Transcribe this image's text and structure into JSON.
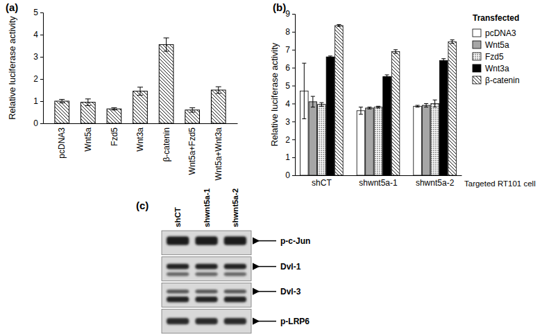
{
  "chart_data": [
    {
      "type": "bar",
      "title": "(a)",
      "ylabel": "Relative luciferase activity",
      "categories": [
        "pcDNA3",
        "Wnt5a",
        "Fzd5",
        "Wnt3a",
        "β-catenin",
        "Wnt5a+Fzd5",
        "Wnt5a+Wnt3a"
      ],
      "values": [
        1.0,
        0.95,
        0.65,
        1.45,
        3.55,
        0.6,
        1.5
      ],
      "errors": [
        0.08,
        0.15,
        0.05,
        0.18,
        0.3,
        0.1,
        0.15
      ],
      "line_style": "hatched",
      "ylim": [
        0,
        5
      ],
      "yticks": [
        0,
        1,
        2,
        3,
        4,
        5
      ]
    },
    {
      "type": "bar",
      "title": "(b)",
      "ylabel": "Relative luciferase activity",
      "xlabel": "Targeted RT101 cell",
      "legend_title": "Transfected",
      "legend": "right",
      "categories": [
        "shCT",
        "shwnt5a-1",
        "shwnt5a-2"
      ],
      "series": [
        {
          "name": "pcDNA3",
          "color": "#ffffff",
          "values": [
            4.7,
            3.6,
            3.85
          ],
          "errors": [
            1.55,
            0.2,
            0.05
          ]
        },
        {
          "name": "Wnt5a",
          "color": "#a6a6a6",
          "values": [
            4.1,
            3.75,
            3.9
          ],
          "errors": [
            0.3,
            0.05,
            0.1
          ]
        },
        {
          "name": "Fzd5",
          "color": "#ffffff",
          "line_style": "dotted",
          "values": [
            3.95,
            3.8,
            4.0
          ],
          "errors": [
            0.1,
            0.05,
            0.2
          ]
        },
        {
          "name": "Wnt3a",
          "color": "#000000",
          "values": [
            6.6,
            5.5,
            6.4
          ],
          "errors": [
            0.05,
            0.1,
            0.1
          ]
        },
        {
          "name": "β-catenin",
          "color": "#ffffff",
          "line_style": "hatched",
          "values": [
            8.35,
            6.9,
            7.45
          ],
          "errors": [
            0.05,
            0.1,
            0.1
          ]
        }
      ],
      "ylim": [
        0,
        9
      ],
      "yticks": [
        0,
        1,
        2,
        3,
        4,
        5,
        6,
        7,
        8,
        9
      ]
    }
  ],
  "blot": {
    "title": "(c)",
    "lanes": [
      "shCT",
      "shwnt5a-1",
      "shwnt5a-2"
    ],
    "rows": [
      "p-c-Jun",
      "Dvl-1",
      "Dvl-3",
      "p-LRP6"
    ]
  }
}
